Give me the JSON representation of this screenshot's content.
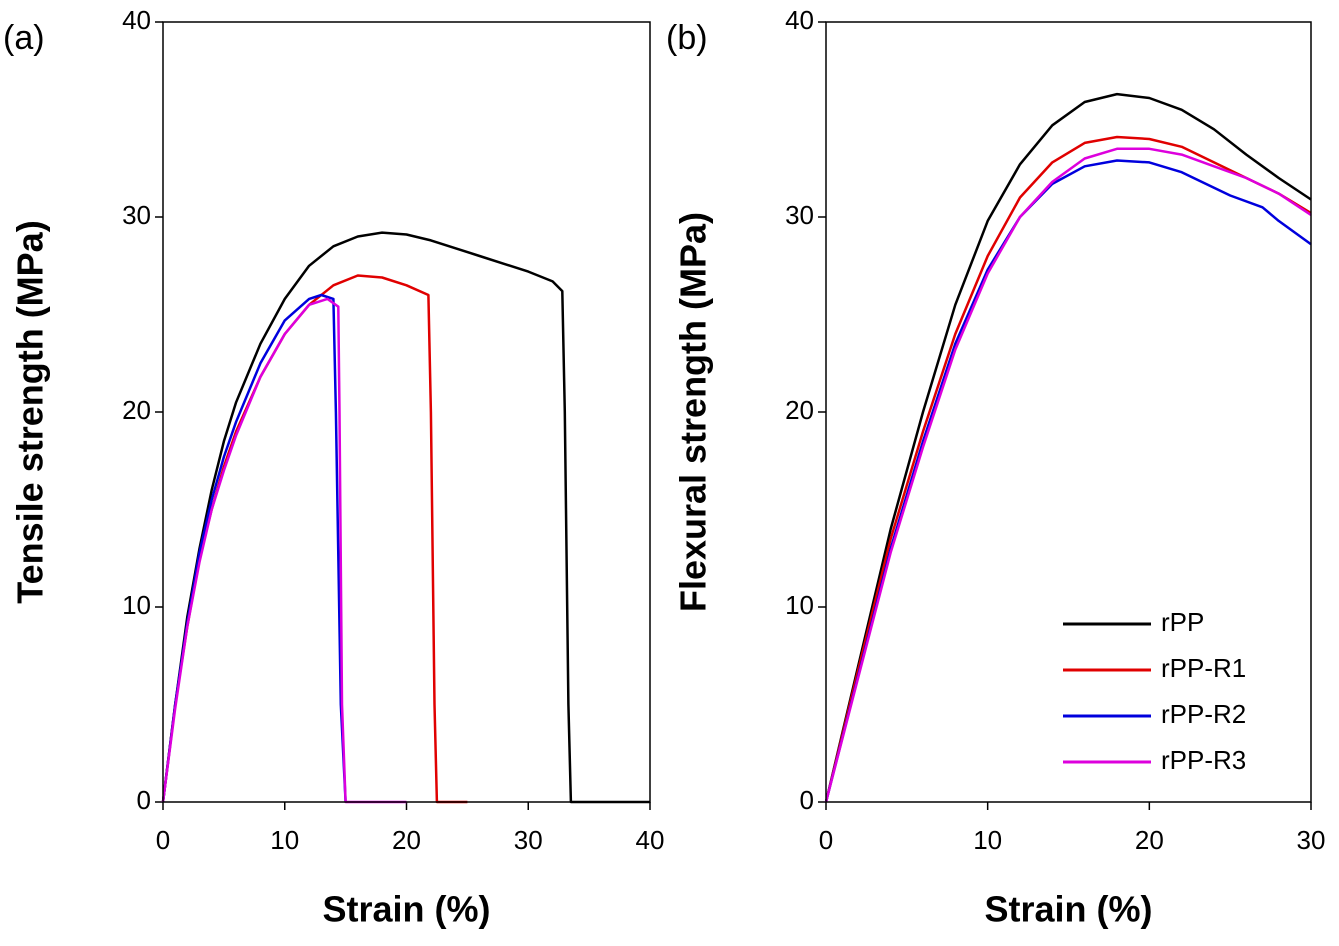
{
  "chart_data": [
    {
      "type": "line",
      "label": "(a)",
      "xlabel": "Strain (%)",
      "ylabel": "Tensile strength (MPa)",
      "xlim": [
        0,
        40
      ],
      "xticks": [
        0,
        10,
        20,
        30,
        40
      ],
      "ylim": [
        0,
        40
      ],
      "yticks": [
        0,
        10,
        20,
        30,
        40
      ],
      "series": [
        {
          "color": "#000000",
          "x": [
            0,
            1,
            2,
            3,
            4,
            5,
            6,
            8,
            10,
            12,
            14,
            16,
            18,
            20,
            22,
            24,
            26,
            28,
            30,
            32,
            32.8,
            33,
            33.3,
            33.5,
            40
          ],
          "values": [
            0,
            5,
            9.5,
            13,
            16,
            18.5,
            20.5,
            23.5,
            25.8,
            27.5,
            28.5,
            29,
            29.2,
            29.1,
            28.8,
            28.4,
            28,
            27.6,
            27.2,
            26.7,
            26.2,
            20,
            5,
            0,
            0
          ]
        },
        {
          "color": "#e00000",
          "x": [
            0,
            1,
            2,
            3,
            4,
            5,
            6,
            8,
            10,
            12,
            14,
            16,
            18,
            20,
            21.8,
            22,
            22.3,
            22.5,
            25
          ],
          "values": [
            0,
            5,
            9,
            12.5,
            15,
            17.2,
            19,
            21.8,
            24,
            25.5,
            26.5,
            27,
            26.9,
            26.5,
            26,
            20,
            5,
            0,
            0
          ]
        },
        {
          "color": "#0000dd",
          "x": [
            0,
            1,
            2,
            3,
            4,
            5,
            6,
            8,
            10,
            12,
            13,
            14,
            14.2,
            14.6,
            15
          ],
          "values": [
            0,
            5,
            9.2,
            12.8,
            15.5,
            17.7,
            19.5,
            22.5,
            24.7,
            25.8,
            26,
            25.8,
            20,
            5,
            0
          ]
        },
        {
          "color": "#dd00dd",
          "x": [
            0,
            1,
            2,
            3,
            4,
            5,
            6,
            8,
            10,
            12,
            13.5,
            14.4,
            14.5,
            14.7,
            15,
            20
          ],
          "values": [
            0,
            4.8,
            9,
            12.3,
            15,
            17,
            18.8,
            21.8,
            24,
            25.5,
            25.8,
            25.4,
            20,
            5,
            0,
            0
          ]
        }
      ]
    },
    {
      "type": "line",
      "label": "(b)",
      "xlabel": "Strain (%)",
      "ylabel": "Flexural strength (MPa)",
      "xlim": [
        0,
        30
      ],
      "xticks": [
        0,
        10,
        20,
        30
      ],
      "ylim": [
        0,
        40
      ],
      "yticks": [
        0,
        10,
        20,
        30,
        40
      ],
      "legend": "lower right",
      "series": [
        {
          "name": "rPP",
          "color": "#000000",
          "x": [
            0,
            2,
            4,
            6,
            8,
            10,
            12,
            14,
            16,
            18,
            20,
            22,
            24,
            26,
            28,
            30
          ],
          "values": [
            0,
            7,
            14,
            20,
            25.5,
            29.8,
            32.7,
            34.7,
            35.9,
            36.3,
            36.1,
            35.5,
            34.5,
            33.2,
            32,
            30.9
          ]
        },
        {
          "name": "rPP-R1",
          "color": "#e00000",
          "x": [
            0,
            2,
            4,
            6,
            8,
            10,
            12,
            14,
            16,
            18,
            20,
            22,
            24,
            26,
            28,
            30
          ],
          "values": [
            0,
            6.8,
            13.5,
            19,
            24,
            28,
            31,
            32.8,
            33.8,
            34.1,
            34,
            33.6,
            32.8,
            32,
            31.2,
            30.2
          ]
        },
        {
          "name": "rPP-R2",
          "color": "#0000dd",
          "x": [
            0,
            2,
            4,
            6,
            8,
            10,
            12,
            14,
            16,
            18,
            20,
            22,
            24,
            25,
            27,
            28,
            30
          ],
          "values": [
            0,
            6.5,
            13,
            18.5,
            23.5,
            27.3,
            30,
            31.7,
            32.6,
            32.9,
            32.8,
            32.3,
            31.5,
            31.1,
            30.5,
            29.8,
            28.6
          ]
        },
        {
          "name": "rPP-R3",
          "color": "#dd00dd",
          "x": [
            0,
            2,
            4,
            6,
            8,
            10,
            12,
            14,
            16,
            18,
            20,
            22,
            24,
            26,
            28,
            30
          ],
          "values": [
            0,
            6.4,
            12.8,
            18.2,
            23.2,
            27.1,
            30,
            31.8,
            33,
            33.5,
            33.5,
            33.2,
            32.6,
            32,
            31.2,
            30.1
          ]
        }
      ]
    }
  ]
}
